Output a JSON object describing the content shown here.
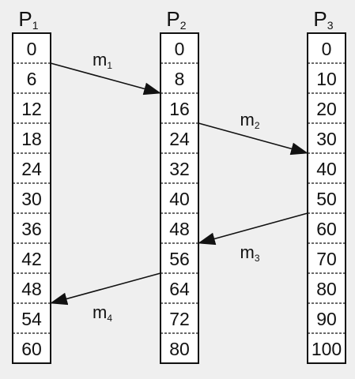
{
  "processes": [
    {
      "label": "P",
      "subscript": "1",
      "ticks": [
        "0",
        "6",
        "12",
        "18",
        "24",
        "30",
        "36",
        "42",
        "48",
        "54",
        "60"
      ]
    },
    {
      "label": "P",
      "subscript": "2",
      "ticks": [
        "0",
        "8",
        "16",
        "24",
        "32",
        "40",
        "48",
        "56",
        "64",
        "72",
        "80"
      ]
    },
    {
      "label": "P",
      "subscript": "3",
      "ticks": [
        "0",
        "10",
        "20",
        "30",
        "40",
        "50",
        "60",
        "70",
        "80",
        "90",
        "100"
      ]
    }
  ],
  "messages": [
    {
      "label": "m",
      "subscript": "1",
      "from": {
        "process": 0,
        "tick": 1
      },
      "to": {
        "process": 1,
        "tick": 2
      }
    },
    {
      "label": "m",
      "subscript": "2",
      "from": {
        "process": 1,
        "tick": 3
      },
      "to": {
        "process": 2,
        "tick": 4
      }
    },
    {
      "label": "m",
      "subscript": "3",
      "from": {
        "process": 2,
        "tick": 6
      },
      "to": {
        "process": 1,
        "tick": 7
      }
    },
    {
      "label": "m",
      "subscript": "4",
      "from": {
        "process": 1,
        "tick": 8
      },
      "to": {
        "process": 0,
        "tick": 9
      }
    }
  ],
  "colors": {
    "background": "#efefef",
    "cell": "#ffffff",
    "ink": "#111111"
  }
}
